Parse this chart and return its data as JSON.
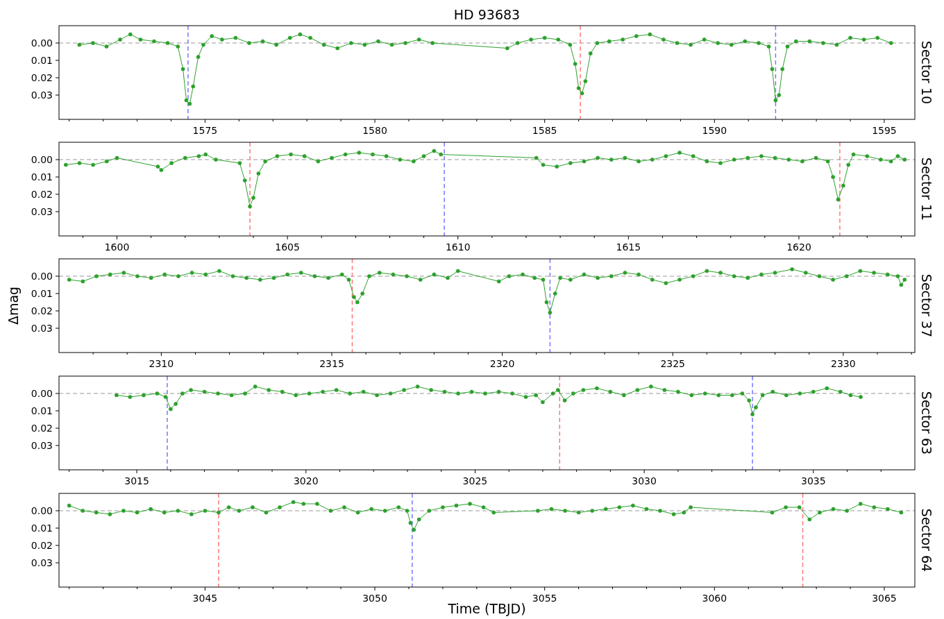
{
  "chart_data": [
    {
      "type": "line",
      "title": "HD 93683",
      "y2label": "Sector 10",
      "marker": "circle",
      "line_style": "solid",
      "xlim": [
        1570.7,
        1595.9
      ],
      "ylim": [
        0.044,
        -0.01
      ],
      "yticks": [
        {
          "value": 0,
          "label": "0.00"
        },
        {
          "value": 0.01,
          "label": "0.01"
        },
        {
          "value": 0.02,
          "label": "0.02"
        },
        {
          "value": 0.03,
          "label": "0.03"
        }
      ],
      "xticks": [
        {
          "value": 1571,
          "label": null
        },
        {
          "value": 1572,
          "label": null
        },
        {
          "value": 1573,
          "label": null
        },
        {
          "value": 1574,
          "label": null
        },
        1575,
        {
          "value": 1576,
          "label": null
        },
        {
          "value": 1577,
          "label": null
        },
        {
          "value": 1578,
          "label": null
        },
        {
          "value": 1579,
          "label": null
        },
        1580,
        {
          "value": 1581,
          "label": null
        },
        {
          "value": 1582,
          "label": null
        },
        {
          "value": 1583,
          "label": null
        },
        {
          "value": 1584,
          "label": null
        },
        1585,
        {
          "value": 1586,
          "label": null
        },
        {
          "value": 1587,
          "label": null
        },
        {
          "value": 1588,
          "label": null
        },
        {
          "value": 1589,
          "label": null
        },
        1590,
        {
          "value": 1591,
          "label": null
        },
        {
          "value": 1592,
          "label": null
        },
        {
          "value": 1593,
          "label": null
        },
        {
          "value": 1594,
          "label": null
        },
        1595
      ],
      "ref_lines": [
        {
          "axis": "y",
          "value": 0,
          "color": "#bbbbbb",
          "line_style": "dashed"
        },
        {
          "axis": "x",
          "value": 1574.5,
          "color": "#7777ff",
          "line_style": "dashed"
        },
        {
          "axis": "x",
          "value": 1586.05,
          "color": "#ff7777",
          "line_style": "dashed"
        },
        {
          "axis": "x",
          "value": 1591.8,
          "color": "#7777ff",
          "line_style": "dashed"
        }
      ],
      "series": [
        {
          "color": "#2ca02c",
          "x": [
            1571.3,
            1571.7,
            1572.1,
            1572.5,
            1572.8,
            1573.1,
            1573.5,
            1573.9,
            1574.2,
            1574.35,
            1574.45,
            1574.55,
            1574.65,
            1574.8,
            1574.95,
            1575.2,
            1575.5,
            1575.9,
            1576.3,
            1576.7,
            1577.1,
            1577.5,
            1577.8,
            1578.1,
            1578.5,
            1578.9,
            1579.3,
            1579.7,
            1580.1,
            1580.5,
            1580.9,
            1581.3,
            1581.7,
            1583.9,
            1584.2,
            1584.6,
            1585.0,
            1585.4,
            1585.75,
            1585.9,
            1586.0,
            1586.1,
            1586.2,
            1586.35,
            1586.55,
            1586.9,
            1587.3,
            1587.7,
            1588.1,
            1588.5,
            1588.9,
            1589.3,
            1589.7,
            1590.1,
            1590.5,
            1590.9,
            1591.3,
            1591.6,
            1591.7,
            1591.8,
            1591.9,
            1592.0,
            1592.15,
            1592.4,
            1592.8,
            1593.2,
            1593.6,
            1594.0,
            1594.4,
            1594.8,
            1595.2
          ],
          "values": [
            0.001,
            0.0,
            0.002,
            -0.002,
            -0.005,
            -0.002,
            -0.001,
            0.0,
            0.002,
            0.015,
            0.033,
            0.035,
            0.025,
            0.008,
            0.001,
            -0.004,
            -0.002,
            -0.003,
            0.0,
            -0.001,
            0.001,
            -0.003,
            -0.005,
            -0.003,
            0.001,
            0.003,
            0.0,
            0.001,
            -0.001,
            0.001,
            0.0,
            -0.002,
            0.0,
            0.003,
            0.0,
            -0.002,
            -0.003,
            -0.002,
            0.001,
            0.012,
            0.026,
            0.029,
            0.022,
            0.006,
            0.0,
            -0.001,
            -0.002,
            -0.004,
            -0.005,
            -0.002,
            0.0,
            0.001,
            -0.002,
            0.0,
            0.001,
            -0.001,
            0.0,
            0.002,
            0.015,
            0.033,
            0.03,
            0.015,
            0.002,
            -0.001,
            -0.001,
            0.0,
            0.001,
            -0.003,
            -0.002,
            -0.003,
            0.0
          ]
        }
      ]
    },
    {
      "type": "line",
      "y2label": "Sector 11",
      "marker": "circle",
      "line_style": "solid",
      "xlim": [
        1598.3,
        1623.4
      ],
      "ylim": [
        0.044,
        -0.01
      ],
      "yticks": [
        {
          "value": 0,
          "label": "0.00"
        },
        {
          "value": 0.01,
          "label": "0.01"
        },
        {
          "value": 0.02,
          "label": "0.02"
        },
        {
          "value": 0.03,
          "label": "0.03"
        }
      ],
      "xticks": [
        {
          "value": 1599,
          "label": null
        },
        1600,
        {
          "value": 1601,
          "label": null
        },
        {
          "value": 1602,
          "label": null
        },
        {
          "value": 1603,
          "label": null
        },
        {
          "value": 1604,
          "label": null
        },
        1605,
        {
          "value": 1606,
          "label": null
        },
        {
          "value": 1607,
          "label": null
        },
        {
          "value": 1608,
          "label": null
        },
        {
          "value": 1609,
          "label": null
        },
        1610,
        {
          "value": 1611,
          "label": null
        },
        {
          "value": 1612,
          "label": null
        },
        {
          "value": 1613,
          "label": null
        },
        {
          "value": 1614,
          "label": null
        },
        1615,
        {
          "value": 1616,
          "label": null
        },
        {
          "value": 1617,
          "label": null
        },
        {
          "value": 1618,
          "label": null
        },
        {
          "value": 1619,
          "label": null
        },
        1620,
        {
          "value": 1621,
          "label": null
        },
        {
          "value": 1622,
          "label": null
        },
        {
          "value": 1623,
          "label": null
        }
      ],
      "ref_lines": [
        {
          "axis": "y",
          "value": 0,
          "color": "#bbbbbb",
          "line_style": "dashed"
        },
        {
          "axis": "x",
          "value": 1603.9,
          "color": "#ff7777",
          "line_style": "dashed"
        },
        {
          "axis": "x",
          "value": 1609.6,
          "color": "#7777ff",
          "line_style": "dashed"
        },
        {
          "axis": "x",
          "value": 1621.2,
          "color": "#ff7777",
          "line_style": "dashed"
        }
      ],
      "series": [
        {
          "color": "#2ca02c",
          "x": [
            1598.5,
            1598.9,
            1599.3,
            1599.7,
            1600.0,
            1601.2,
            1601.3,
            1601.6,
            1602.0,
            1602.4,
            1602.6,
            1602.9,
            1603.6,
            1603.75,
            1603.9,
            1604.0,
            1604.15,
            1604.35,
            1604.7,
            1605.1,
            1605.5,
            1605.9,
            1606.3,
            1606.7,
            1607.1,
            1607.5,
            1607.9,
            1608.3,
            1608.7,
            1609.0,
            1609.3,
            1609.5,
            1612.3,
            1612.5,
            1612.9,
            1613.3,
            1613.7,
            1614.1,
            1614.5,
            1614.9,
            1615.3,
            1615.7,
            1616.1,
            1616.5,
            1616.9,
            1617.3,
            1617.7,
            1618.1,
            1618.5,
            1618.9,
            1619.3,
            1619.7,
            1620.1,
            1620.5,
            1620.85,
            1621.0,
            1621.15,
            1621.3,
            1621.45,
            1621.6,
            1622.0,
            1622.4,
            1622.7,
            1622.9,
            1623.1
          ],
          "values": [
            0.003,
            0.002,
            0.003,
            0.001,
            -0.001,
            0.004,
            0.006,
            0.002,
            -0.001,
            -0.002,
            -0.003,
            0.0,
            0.002,
            0.012,
            0.027,
            0.022,
            0.008,
            0.001,
            -0.002,
            -0.003,
            -0.002,
            0.001,
            -0.001,
            -0.003,
            -0.004,
            -0.003,
            -0.002,
            0.0,
            0.001,
            -0.002,
            -0.005,
            -0.003,
            -0.001,
            0.003,
            0.004,
            0.002,
            0.001,
            -0.001,
            0.0,
            -0.001,
            0.001,
            0.0,
            -0.002,
            -0.004,
            -0.002,
            0.001,
            0.002,
            0.0,
            -0.001,
            -0.002,
            -0.001,
            0.0,
            0.001,
            -0.001,
            0.001,
            0.01,
            0.023,
            0.015,
            0.003,
            -0.003,
            -0.002,
            0.0,
            0.001,
            -0.002,
            0.0
          ]
        }
      ]
    },
    {
      "type": "line",
      "ylabel": "Δmag",
      "y2label": "Sector 37",
      "marker": "circle",
      "line_style": "solid",
      "xlim": [
        2307.0,
        2332.1
      ],
      "ylim": [
        0.044,
        -0.01
      ],
      "yticks": [
        {
          "value": 0,
          "label": "0.00"
        },
        {
          "value": 0.01,
          "label": "0.01"
        },
        {
          "value": 0.02,
          "label": "0.02"
        },
        {
          "value": 0.03,
          "label": "0.03"
        }
      ],
      "xticks": [
        {
          "value": 2308,
          "label": null
        },
        {
          "value": 2309,
          "label": null
        },
        2310,
        {
          "value": 2311,
          "label": null
        },
        {
          "value": 2312,
          "label": null
        },
        {
          "value": 2313,
          "label": null
        },
        {
          "value": 2314,
          "label": null
        },
        2315,
        {
          "value": 2316,
          "label": null
        },
        {
          "value": 2317,
          "label": null
        },
        {
          "value": 2318,
          "label": null
        },
        {
          "value": 2319,
          "label": null
        },
        2320,
        {
          "value": 2321,
          "label": null
        },
        {
          "value": 2322,
          "label": null
        },
        {
          "value": 2323,
          "label": null
        },
        {
          "value": 2324,
          "label": null
        },
        2325,
        {
          "value": 2326,
          "label": null
        },
        {
          "value": 2327,
          "label": null
        },
        {
          "value": 2328,
          "label": null
        },
        {
          "value": 2329,
          "label": null
        },
        2330,
        {
          "value": 2331,
          "label": null
        },
        {
          "value": 2332,
          "label": null
        }
      ],
      "ref_lines": [
        {
          "axis": "y",
          "value": 0,
          "color": "#bbbbbb",
          "line_style": "dashed"
        },
        {
          "axis": "x",
          "value": 2315.6,
          "color": "#ff7777",
          "line_style": "dashed"
        },
        {
          "axis": "x",
          "value": 2321.4,
          "color": "#7777ff",
          "line_style": "dashed"
        }
      ],
      "series": [
        {
          "color": "#2ca02c",
          "x": [
            2307.3,
            2307.7,
            2308.1,
            2308.5,
            2308.9,
            2309.3,
            2309.7,
            2310.1,
            2310.5,
            2310.9,
            2311.3,
            2311.7,
            2312.1,
            2312.5,
            2312.9,
            2313.3,
            2313.7,
            2314.1,
            2314.5,
            2314.9,
            2315.3,
            2315.5,
            2315.65,
            2315.75,
            2315.9,
            2316.1,
            2316.4,
            2316.8,
            2317.2,
            2317.6,
            2318.0,
            2318.4,
            2318.7,
            2319.9,
            2320.2,
            2320.6,
            2320.95,
            2321.2,
            2321.3,
            2321.4,
            2321.55,
            2321.7,
            2322.0,
            2322.4,
            2322.8,
            2323.2,
            2323.6,
            2324.0,
            2324.4,
            2324.8,
            2325.2,
            2325.6,
            2326.0,
            2326.4,
            2326.8,
            2327.2,
            2327.6,
            2328.0,
            2328.5,
            2328.9,
            2329.3,
            2329.7,
            2330.1,
            2330.5,
            2330.9,
            2331.3,
            2331.6,
            2331.7,
            2331.8
          ],
          "values": [
            0.002,
            0.003,
            0.0,
            -0.001,
            -0.002,
            0.0,
            0.001,
            -0.001,
            0.0,
            -0.002,
            -0.001,
            -0.003,
            0.0,
            0.001,
            0.002,
            0.001,
            -0.001,
            -0.002,
            0.0,
            0.001,
            -0.001,
            0.002,
            0.012,
            0.015,
            0.01,
            0.0,
            -0.002,
            -0.001,
            0.0,
            0.002,
            -0.001,
            0.001,
            -0.003,
            0.003,
            0.0,
            -0.001,
            0.001,
            0.002,
            0.015,
            0.021,
            0.01,
            0.001,
            0.002,
            -0.001,
            0.001,
            0.0,
            -0.002,
            -0.001,
            0.002,
            0.004,
            0.002,
            0.0,
            -0.003,
            -0.002,
            0.0,
            0.001,
            -0.001,
            -0.002,
            -0.004,
            -0.002,
            0.0,
            0.002,
            0.0,
            -0.003,
            -0.002,
            -0.001,
            0.0,
            0.005,
            0.002
          ]
        }
      ]
    },
    {
      "type": "line",
      "y2label": "Sector 63",
      "marker": "circle",
      "line_style": "solid",
      "xlim": [
        3012.7,
        3038.0
      ],
      "ylim": [
        0.044,
        -0.01
      ],
      "yticks": [
        {
          "value": 0,
          "label": "0.00"
        },
        {
          "value": 0.01,
          "label": "0.01"
        },
        {
          "value": 0.02,
          "label": "0.02"
        },
        {
          "value": 0.03,
          "label": "0.03"
        }
      ],
      "xticks": [
        {
          "value": 3013,
          "label": null
        },
        {
          "value": 3014,
          "label": null
        },
        3015,
        {
          "value": 3016,
          "label": null
        },
        {
          "value": 3017,
          "label": null
        },
        {
          "value": 3018,
          "label": null
        },
        {
          "value": 3019,
          "label": null
        },
        3020,
        {
          "value": 3021,
          "label": null
        },
        {
          "value": 3022,
          "label": null
        },
        {
          "value": 3023,
          "label": null
        },
        {
          "value": 3024,
          "label": null
        },
        3025,
        {
          "value": 3026,
          "label": null
        },
        {
          "value": 3027,
          "label": null
        },
        {
          "value": 3028,
          "label": null
        },
        {
          "value": 3029,
          "label": null
        },
        3030,
        {
          "value": 3031,
          "label": null
        },
        {
          "value": 3032,
          "label": null
        },
        {
          "value": 3033,
          "label": null
        },
        {
          "value": 3034,
          "label": null
        },
        3035,
        {
          "value": 3036,
          "label": null
        },
        {
          "value": 3037,
          "label": null
        }
      ],
      "ref_lines": [
        {
          "axis": "y",
          "value": 0,
          "color": "#bbbbbb",
          "line_style": "dashed"
        },
        {
          "axis": "x",
          "value": 3015.9,
          "color": "#7777ff",
          "line_style": "dashed"
        },
        {
          "axis": "x",
          "value": 3027.5,
          "color": "#ff7777",
          "line_style": "dashed"
        },
        {
          "axis": "x",
          "value": 3033.2,
          "color": "#7777ff",
          "line_style": "dashed"
        }
      ],
      "series": [
        {
          "color": "#2ca02c",
          "x": [
            3014.4,
            3014.8,
            3015.2,
            3015.6,
            3015.85,
            3016.0,
            3016.15,
            3016.35,
            3016.6,
            3017.0,
            3017.4,
            3017.8,
            3018.2,
            3018.5,
            3018.9,
            3019.3,
            3019.7,
            3020.1,
            3020.5,
            3020.9,
            3021.3,
            3021.7,
            3022.1,
            3022.5,
            3022.9,
            3023.3,
            3023.7,
            3024.1,
            3024.5,
            3024.9,
            3025.3,
            3025.7,
            3026.1,
            3026.5,
            3026.8,
            3027.0,
            3027.3,
            3027.45,
            3027.65,
            3027.9,
            3028.2,
            3028.6,
            3029.0,
            3029.4,
            3029.8,
            3030.2,
            3030.6,
            3031.0,
            3031.4,
            3031.8,
            3032.2,
            3032.6,
            3032.9,
            3033.1,
            3033.2,
            3033.3,
            3033.5,
            3033.8,
            3034.2,
            3034.6,
            3035.0,
            3035.4,
            3035.8,
            3036.1,
            3036.4
          ],
          "values": [
            0.001,
            0.002,
            0.001,
            0.0,
            0.002,
            0.009,
            0.006,
            0.0,
            -0.002,
            -0.001,
            0.0,
            0.001,
            0.0,
            -0.004,
            -0.002,
            -0.001,
            0.001,
            0.0,
            -0.001,
            -0.002,
            0.0,
            -0.001,
            0.001,
            0.0,
            -0.002,
            -0.004,
            -0.002,
            -0.001,
            0.0,
            -0.001,
            0.0,
            -0.001,
            0.0,
            0.002,
            0.001,
            0.005,
            0.0,
            -0.002,
            0.004,
            0.0,
            -0.002,
            -0.003,
            -0.001,
            0.001,
            -0.002,
            -0.004,
            -0.002,
            -0.001,
            0.001,
            0.0,
            0.001,
            0.001,
            0.0,
            0.004,
            0.012,
            0.008,
            0.001,
            -0.001,
            0.001,
            0.0,
            -0.001,
            -0.003,
            -0.001,
            0.001,
            0.002
          ]
        }
      ]
    },
    {
      "type": "line",
      "xlabel": "Time (TBJD)",
      "y2label": "Sector 64",
      "marker": "circle",
      "line_style": "solid",
      "xlim": [
        3040.7,
        3065.9
      ],
      "ylim": [
        0.044,
        -0.01
      ],
      "yticks": [
        {
          "value": 0,
          "label": "0.00"
        },
        {
          "value": 0.01,
          "label": "0.01"
        },
        {
          "value": 0.02,
          "label": "0.02"
        },
        {
          "value": 0.03,
          "label": "0.03"
        }
      ],
      "xticks": [
        {
          "value": 3041,
          "label": null
        },
        {
          "value": 3042,
          "label": null
        },
        {
          "value": 3043,
          "label": null
        },
        {
          "value": 3044,
          "label": null
        },
        3045,
        {
          "value": 3046,
          "label": null
        },
        {
          "value": 3047,
          "label": null
        },
        {
          "value": 3048,
          "label": null
        },
        {
          "value": 3049,
          "label": null
        },
        3050,
        {
          "value": 3051,
          "label": null
        },
        {
          "value": 3052,
          "label": null
        },
        {
          "value": 3053,
          "label": null
        },
        {
          "value": 3054,
          "label": null
        },
        3055,
        {
          "value": 3056,
          "label": null
        },
        {
          "value": 3057,
          "label": null
        },
        {
          "value": 3058,
          "label": null
        },
        {
          "value": 3059,
          "label": null
        },
        3060,
        {
          "value": 3061,
          "label": null
        },
        {
          "value": 3062,
          "label": null
        },
        {
          "value": 3063,
          "label": null
        },
        {
          "value": 3064,
          "label": null
        },
        3065
      ],
      "ref_lines": [
        {
          "axis": "y",
          "value": 0,
          "color": "#bbbbbb",
          "line_style": "dashed"
        },
        {
          "axis": "x",
          "value": 3045.4,
          "color": "#ff7777",
          "line_style": "dashed"
        },
        {
          "axis": "x",
          "value": 3051.1,
          "color": "#7777ff",
          "line_style": "dashed"
        },
        {
          "axis": "x",
          "value": 3062.6,
          "color": "#ff7777",
          "line_style": "dashed"
        }
      ],
      "series": [
        {
          "color": "#2ca02c",
          "x": [
            3041.0,
            3041.4,
            3041.8,
            3042.2,
            3042.6,
            3043.0,
            3043.4,
            3043.8,
            3044.2,
            3044.6,
            3045.0,
            3045.4,
            3045.7,
            3046.0,
            3046.4,
            3046.8,
            3047.2,
            3047.6,
            3047.9,
            3048.3,
            3048.7,
            3049.1,
            3049.5,
            3049.9,
            3050.3,
            3050.7,
            3050.95,
            3051.05,
            3051.15,
            3051.3,
            3051.6,
            3052.0,
            3052.4,
            3052.8,
            3053.2,
            3053.5,
            3054.8,
            3055.2,
            3055.6,
            3056.0,
            3056.4,
            3056.8,
            3057.2,
            3057.6,
            3058.0,
            3058.4,
            3058.8,
            3059.1,
            3059.3,
            3061.7,
            3062.1,
            3062.5,
            3062.8,
            3063.1,
            3063.5,
            3063.9,
            3064.3,
            3064.7,
            3065.1,
            3065.5
          ],
          "values": [
            -0.003,
            0.0,
            0.001,
            0.002,
            0.0,
            0.001,
            -0.001,
            0.001,
            0.0,
            0.002,
            0.0,
            0.001,
            -0.002,
            0.0,
            -0.002,
            0.001,
            -0.002,
            -0.005,
            -0.004,
            -0.004,
            0.0,
            -0.002,
            0.001,
            -0.001,
            0.0,
            -0.002,
            0.0,
            0.007,
            0.011,
            0.005,
            0.0,
            -0.002,
            -0.003,
            -0.004,
            -0.002,
            0.001,
            0.0,
            -0.001,
            0.0,
            0.001,
            0.0,
            -0.001,
            -0.002,
            -0.003,
            -0.001,
            0.0,
            0.002,
            0.001,
            -0.002,
            0.001,
            -0.002,
            -0.002,
            0.005,
            0.001,
            -0.001,
            0.0,
            -0.004,
            -0.002,
            -0.001,
            0.001
          ]
        }
      ]
    }
  ]
}
